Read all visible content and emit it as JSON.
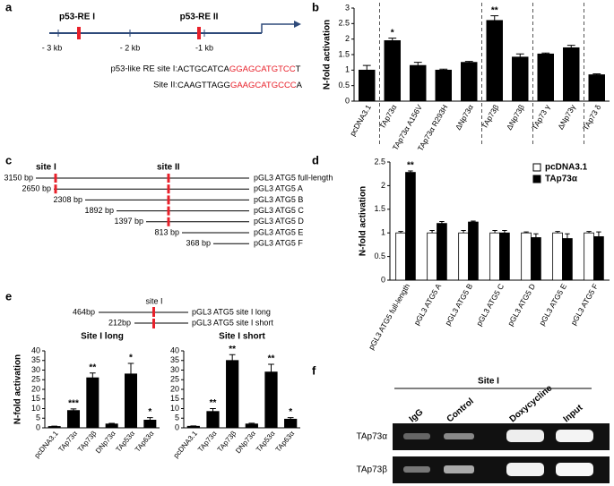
{
  "panel_labels": [
    "a",
    "b",
    "c",
    "d",
    "e",
    "f"
  ],
  "promoter": {
    "sites": [
      "p53-RE I",
      "p53-RE II"
    ],
    "positions": [
      "- 3 kb",
      "- 2 kb",
      "-1 kb"
    ],
    "sequences": [
      {
        "label": "p53-like RE site I: ",
        "parts": [
          "ACTGCATCA",
          "GGAGCATGTCC",
          "T"
        ]
      },
      {
        "label": "Site II: ",
        "parts": [
          "CAAGTTAGG",
          "GAAGCATGCCC",
          "A"
        ]
      }
    ]
  },
  "constructs": {
    "sites": [
      "site I",
      "site II"
    ],
    "rows": [
      {
        "length": "3150 bp",
        "name": "pGL3 ATG5 full-length"
      },
      {
        "length": "2650 bp",
        "name": "pGL3 ATG5 A"
      },
      {
        "length": "2308 bp",
        "name": "pGL3 ATG5 B"
      },
      {
        "length": "1892 bp",
        "name": "pGL3 ATG5 C"
      },
      {
        "length": "1397 bp",
        "name": "pGL3 ATG5 D"
      },
      {
        "length": "813 bp",
        "name": "pGL3 ATG5 E"
      },
      {
        "length": "368 bp",
        "name": "pGL3 ATG5 F"
      }
    ]
  },
  "site_constructs": {
    "site": "site I",
    "rows": [
      {
        "length": "464bp",
        "name": "pGL3 ATG5 site I long"
      },
      {
        "length": "212bp",
        "name": "pGL3 ATG5 site I short"
      }
    ]
  },
  "chip": {
    "header": "Site I",
    "lanes": [
      "IgG",
      "Control",
      "Doxycycline",
      "Input"
    ],
    "rows": [
      "TAp73α",
      "TAp73β"
    ]
  },
  "chart_data": [
    {
      "type": "bar",
      "y_label": "N-fold activation",
      "categories": [
        "pcDNA3.1",
        "TAp73α",
        "TAp73α A156V",
        "TAp73α R293H",
        "ΔNp73α",
        "TAp73β",
        "ΔNp73β",
        "TAp73 γ",
        "ΔNp73γ",
        "TAp73 δ"
      ],
      "values": [
        1.0,
        1.95,
        1.15,
        1.0,
        1.25,
        2.6,
        1.42,
        1.52,
        1.72,
        0.85
      ],
      "errors": [
        0.15,
        0.08,
        0.1,
        0.03,
        0.03,
        0.15,
        0.1,
        0.03,
        0.08,
        0.03
      ],
      "annotations": [
        null,
        "*",
        null,
        null,
        null,
        "**",
        null,
        null,
        null,
        null
      ],
      "color": "#000000",
      "group_separators_after": [
        0,
        4,
        6,
        8
      ],
      "ylim": [
        0,
        3
      ],
      "yticks": [
        0,
        0.5,
        1,
        1.5,
        2,
        2.5,
        3
      ]
    },
    {
      "type": "bar",
      "y_label": "N-fold activation",
      "categories": [
        "pGL3 ATG5 full-length",
        "pGL3 ATG5 A",
        "pGL3 ATG5 B",
        "pGL3 ATG5 C",
        "pGL3 ATG5 D",
        "pGL3 ATG5 E",
        "pGL3 ATG5 F"
      ],
      "series": [
        {
          "name": "pcDNA3.1",
          "color": "#ffffff",
          "values": [
            1.0,
            1.0,
            1.0,
            1.0,
            1.0,
            1.0,
            1.0
          ],
          "errors": [
            0.03,
            0.05,
            0.05,
            0.05,
            0.02,
            0.03,
            0.03
          ]
        },
        {
          "name": "TAp73α",
          "color": "#000000",
          "values": [
            2.28,
            1.2,
            1.23,
            1.0,
            0.9,
            0.88,
            0.92
          ],
          "errors": [
            0.03,
            0.04,
            0.02,
            0.05,
            0.08,
            0.1,
            0.1
          ]
        }
      ],
      "annotations": [
        "**",
        null,
        null,
        null,
        null,
        null,
        null
      ],
      "legend": "top-right",
      "ylim": [
        0,
        2.5
      ],
      "yticks": [
        0,
        0.5,
        1,
        1.5,
        2,
        2.5
      ]
    },
    {
      "type": "bar",
      "title": "Site I long",
      "y_label": "N-fold activation",
      "categories": [
        "pcDNA3.1",
        "TAp73α",
        "TAp73β",
        "DNp73α",
        "TAp53α",
        "TAp63α"
      ],
      "values": [
        0.7,
        9,
        26,
        2,
        28,
        4
      ],
      "errors": [
        0.2,
        0.8,
        2.5,
        0.3,
        5.5,
        1.3
      ],
      "annotations": [
        null,
        "***",
        "**",
        null,
        "*",
        "*"
      ],
      "color": "#000000",
      "ylim": [
        0,
        40
      ],
      "yticks": [
        0,
        5,
        10,
        15,
        20,
        25,
        30,
        35,
        40
      ]
    },
    {
      "type": "bar",
      "title": "Site I short",
      "categories": [
        "pcDNA3.1",
        "TAp73α",
        "TAp73β",
        "DNp73α",
        "TAp53α",
        "TAp63α"
      ],
      "values": [
        0.8,
        8.5,
        35,
        2,
        29,
        4.5
      ],
      "errors": [
        0.2,
        1.5,
        3,
        0.4,
        4,
        0.8
      ],
      "annotations": [
        null,
        "**",
        "**",
        null,
        "**",
        "*"
      ],
      "color": "#000000",
      "ylim": [
        0,
        40
      ],
      "yticks": [
        0,
        5,
        10,
        15,
        20,
        25,
        30,
        35,
        40
      ]
    }
  ]
}
